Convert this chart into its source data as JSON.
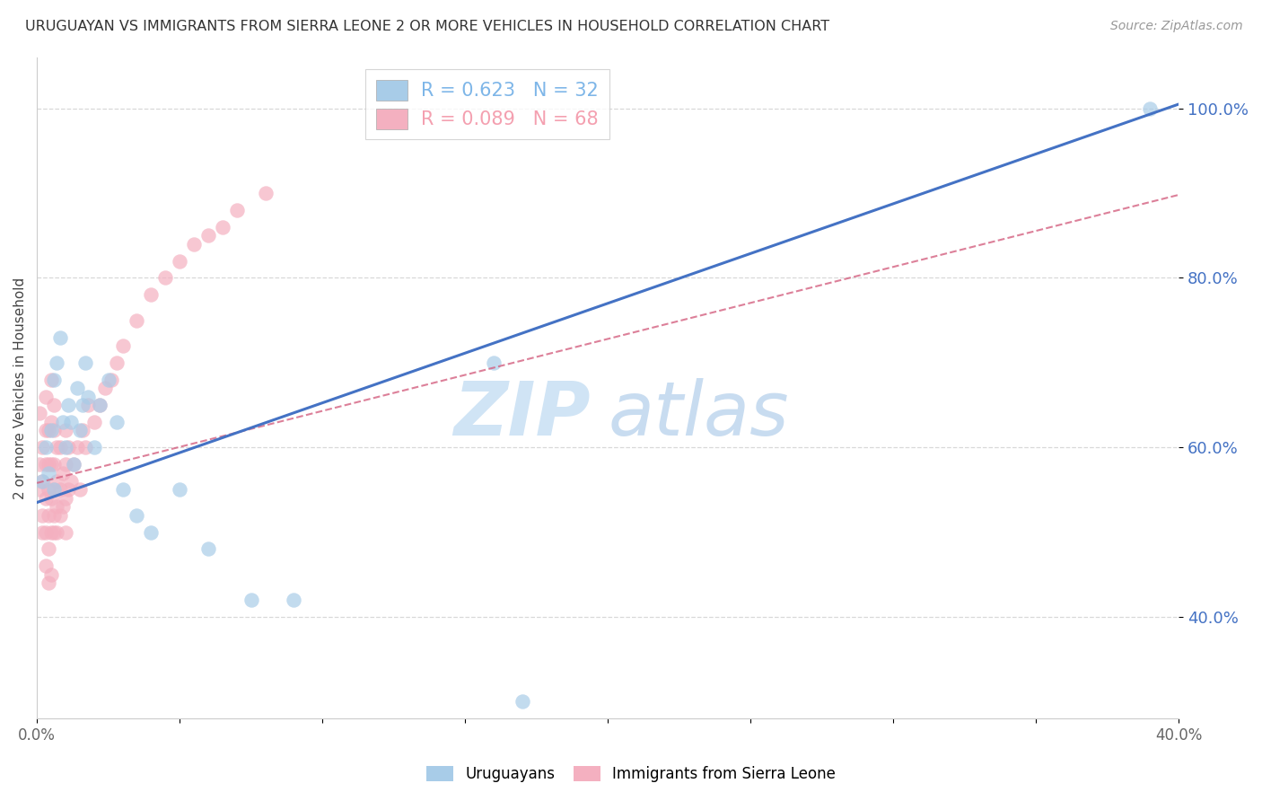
{
  "title": "URUGUAYAN VS IMMIGRANTS FROM SIERRA LEONE 2 OR MORE VEHICLES IN HOUSEHOLD CORRELATION CHART",
  "source": "Source: ZipAtlas.com",
  "ylabel": "2 or more Vehicles in Household",
  "xlim": [
    0.0,
    0.4
  ],
  "ylim": [
    0.28,
    1.06
  ],
  "x_ticks": [
    0.0,
    0.05,
    0.1,
    0.15,
    0.2,
    0.25,
    0.3,
    0.35,
    0.4
  ],
  "x_tick_labels": [
    "0.0%",
    "",
    "",
    "",
    "",
    "",
    "",
    "",
    "40.0%"
  ],
  "y_ticks": [
    0.4,
    0.6,
    0.8,
    1.0
  ],
  "y_tick_labels": [
    "40.0%",
    "60.0%",
    "80.0%",
    "100.0%"
  ],
  "legend_entries": [
    {
      "label": "R = 0.623   N = 32",
      "color": "#7eb6e8"
    },
    {
      "label": "R = 0.089   N = 68",
      "color": "#f4a0b0"
    }
  ],
  "uruguayan_x": [
    0.002,
    0.003,
    0.004,
    0.005,
    0.006,
    0.006,
    0.007,
    0.008,
    0.009,
    0.01,
    0.011,
    0.012,
    0.013,
    0.014,
    0.015,
    0.016,
    0.017,
    0.018,
    0.02,
    0.022,
    0.025,
    0.028,
    0.03,
    0.035,
    0.04,
    0.05,
    0.06,
    0.075,
    0.09,
    0.16,
    0.17,
    0.39
  ],
  "uruguayan_y": [
    0.56,
    0.6,
    0.57,
    0.62,
    0.55,
    0.68,
    0.7,
    0.73,
    0.63,
    0.6,
    0.65,
    0.63,
    0.58,
    0.67,
    0.62,
    0.65,
    0.7,
    0.66,
    0.6,
    0.65,
    0.68,
    0.63,
    0.55,
    0.52,
    0.5,
    0.55,
    0.48,
    0.42,
    0.42,
    0.7,
    0.3,
    1.0
  ],
  "sierraleone_x": [
    0.001,
    0.001,
    0.001,
    0.002,
    0.002,
    0.002,
    0.002,
    0.003,
    0.003,
    0.003,
    0.003,
    0.003,
    0.003,
    0.004,
    0.004,
    0.004,
    0.004,
    0.004,
    0.004,
    0.005,
    0.005,
    0.005,
    0.005,
    0.005,
    0.005,
    0.006,
    0.006,
    0.006,
    0.006,
    0.006,
    0.006,
    0.007,
    0.007,
    0.007,
    0.007,
    0.008,
    0.008,
    0.008,
    0.009,
    0.009,
    0.01,
    0.01,
    0.01,
    0.01,
    0.011,
    0.011,
    0.012,
    0.013,
    0.014,
    0.015,
    0.016,
    0.017,
    0.018,
    0.02,
    0.022,
    0.024,
    0.026,
    0.028,
    0.03,
    0.035,
    0.04,
    0.045,
    0.05,
    0.055,
    0.06,
    0.065,
    0.07,
    0.08
  ],
  "sierraleone_y": [
    0.55,
    0.58,
    0.64,
    0.5,
    0.52,
    0.56,
    0.6,
    0.46,
    0.5,
    0.54,
    0.58,
    0.62,
    0.66,
    0.44,
    0.48,
    0.52,
    0.55,
    0.58,
    0.62,
    0.45,
    0.5,
    0.54,
    0.58,
    0.63,
    0.68,
    0.5,
    0.52,
    0.55,
    0.58,
    0.62,
    0.65,
    0.5,
    0.53,
    0.56,
    0.6,
    0.52,
    0.55,
    0.6,
    0.53,
    0.57,
    0.5,
    0.54,
    0.58,
    0.62,
    0.55,
    0.6,
    0.56,
    0.58,
    0.6,
    0.55,
    0.62,
    0.6,
    0.65,
    0.63,
    0.65,
    0.67,
    0.68,
    0.7,
    0.72,
    0.75,
    0.78,
    0.8,
    0.82,
    0.84,
    0.85,
    0.86,
    0.88,
    0.9
  ],
  "blue_color": "#a8cce8",
  "pink_color": "#f4b0c0",
  "blue_line_color": "#4472c4",
  "pink_line_color": "#d46080",
  "watermark_zip": "ZIP",
  "watermark_atlas": "atlas",
  "watermark_color": "#d0e4f5",
  "background_color": "#ffffff",
  "grid_color": "#d8d8d8",
  "blue_reg_intercept": 0.535,
  "blue_reg_slope": 1.175,
  "pink_reg_intercept": 0.558,
  "pink_reg_slope": 0.85
}
